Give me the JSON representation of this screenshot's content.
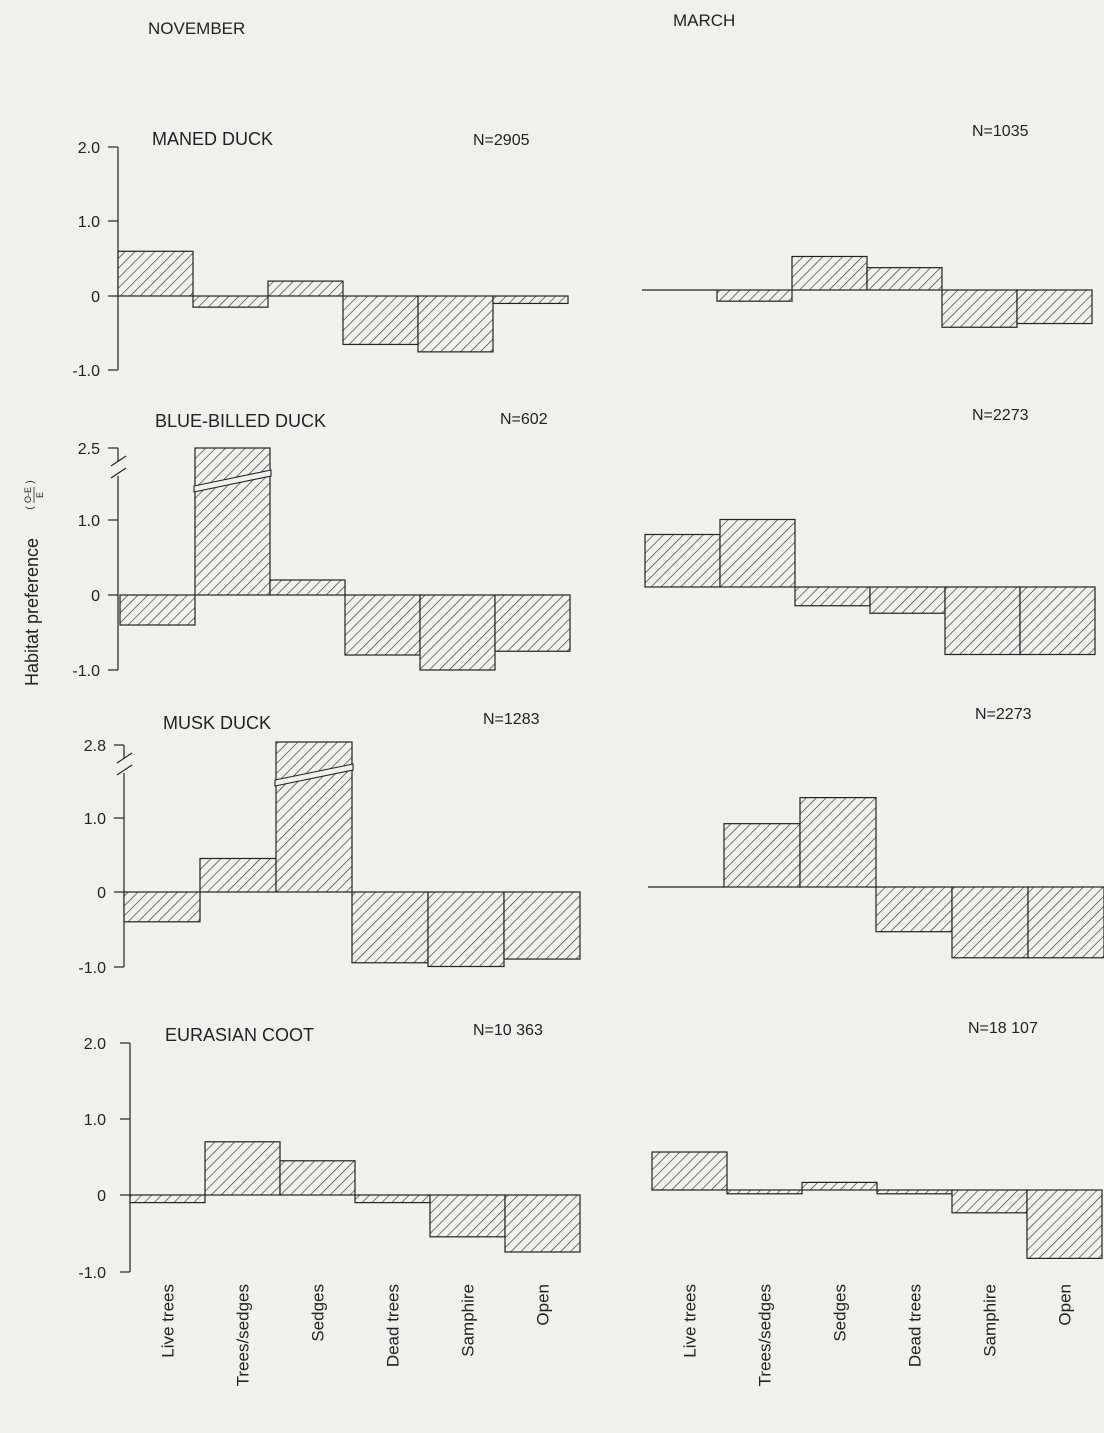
{
  "figure": {
    "columns": [
      "NOVEMBER",
      "MARCH"
    ],
    "ylabel": "Habitat preference",
    "ylabel_fraction": {
      "numerator": "O-E",
      "denominator": "E"
    },
    "categories": [
      "Live trees",
      "Trees/sedges",
      "Sedges",
      "Dead trees",
      "Samphire",
      "Open"
    ]
  },
  "chart_data": [
    {
      "type": "bar",
      "title": "MANED DUCK",
      "series": [
        {
          "name": "NOVEMBER",
          "n_label": "N=2905",
          "values": [
            0.6,
            -0.15,
            0.2,
            -0.65,
            -0.75,
            -0.1
          ]
        },
        {
          "name": "MARCH",
          "n_label": "N=1035",
          "values": [
            0.0,
            -0.15,
            0.45,
            0.3,
            -0.5,
            -0.45
          ]
        }
      ],
      "yticks": [
        "2.0",
        "1.0",
        "0",
        "-1.0"
      ],
      "ylim": [
        -1.0,
        2.0
      ],
      "axis_break": false
    },
    {
      "type": "bar",
      "title": "BLUE-BILLED DUCK",
      "series": [
        {
          "name": "NOVEMBER",
          "n_label": "N=602",
          "values": [
            -0.4,
            2.5,
            0.2,
            -0.8,
            -1.0,
            -0.75
          ]
        },
        {
          "name": "MARCH",
          "n_label": "N=2273",
          "values": [
            0.7,
            0.9,
            -0.25,
            -0.35,
            -0.9,
            -0.9
          ]
        }
      ],
      "yticks": [
        "2.5",
        "1.0",
        "0",
        "-1.0"
      ],
      "ylim": [
        -1.0,
        2.5
      ],
      "axis_break": true
    },
    {
      "type": "bar",
      "title": "MUSK DUCK",
      "series": [
        {
          "name": "NOVEMBER",
          "n_label": "N=1283",
          "values": [
            -0.4,
            0.45,
            2.8,
            -0.95,
            -1.0,
            -0.9
          ]
        },
        {
          "name": "MARCH",
          "n_label": "N=2273",
          "values": [
            0.0,
            0.85,
            1.2,
            -0.6,
            -0.95,
            -0.95
          ]
        }
      ],
      "yticks": [
        "2.8",
        "1.0",
        "0",
        "-1.0"
      ],
      "ylim": [
        -1.0,
        2.8
      ],
      "axis_break": true
    },
    {
      "type": "bar",
      "title": "EURASIAN COOT",
      "series": [
        {
          "name": "NOVEMBER",
          "n_label": "N=10 363",
          "values": [
            -0.1,
            0.7,
            0.45,
            -0.1,
            -0.55,
            -0.75
          ]
        },
        {
          "name": "MARCH",
          "n_label": "N=18 107",
          "values": [
            0.5,
            -0.05,
            0.1,
            -0.05,
            -0.3,
            -0.9
          ]
        }
      ],
      "yticks": [
        "2.0",
        "1.0",
        "0",
        "-1.0"
      ],
      "ylim": [
        -1.0,
        2.0
      ],
      "axis_break": false
    }
  ],
  "colors": {
    "ink": "#222222",
    "paper": "#f2f0ec",
    "hatch": "#333333"
  }
}
